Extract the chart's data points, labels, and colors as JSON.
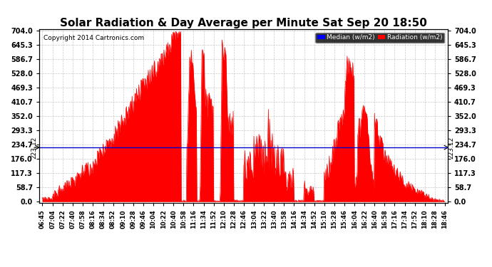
{
  "title": "Solar Radiation & Day Average per Minute Sat Sep 20 18:50",
  "copyright": "Copyright 2014 Cartronics.com",
  "yticks": [
    0.0,
    58.7,
    117.3,
    176.0,
    234.7,
    293.3,
    352.0,
    410.7,
    469.3,
    528.0,
    586.7,
    645.3,
    704.0
  ],
  "ymax": 704.0,
  "ymin": 0.0,
  "median_value": 223.12,
  "radiation_color": "#FF0000",
  "median_color": "#0000CC",
  "background_color": "#FFFFFF",
  "grid_color": "#BBBBBB",
  "title_fontsize": 11,
  "legend_median_label": "Median (w/m2)",
  "legend_radiation_label": "Radiation (w/m2)",
  "xtick_labels": [
    "06:45",
    "07:04",
    "07:22",
    "07:40",
    "07:58",
    "08:16",
    "08:34",
    "08:52",
    "09:10",
    "09:28",
    "09:46",
    "10:04",
    "10:22",
    "10:40",
    "10:58",
    "11:16",
    "11:34",
    "11:52",
    "12:10",
    "12:28",
    "12:46",
    "13:04",
    "13:22",
    "13:40",
    "13:58",
    "14:16",
    "14:34",
    "14:52",
    "15:10",
    "15:28",
    "15:46",
    "16:04",
    "16:22",
    "16:40",
    "16:58",
    "17:16",
    "17:34",
    "17:52",
    "18:10",
    "18:28",
    "18:46"
  ]
}
